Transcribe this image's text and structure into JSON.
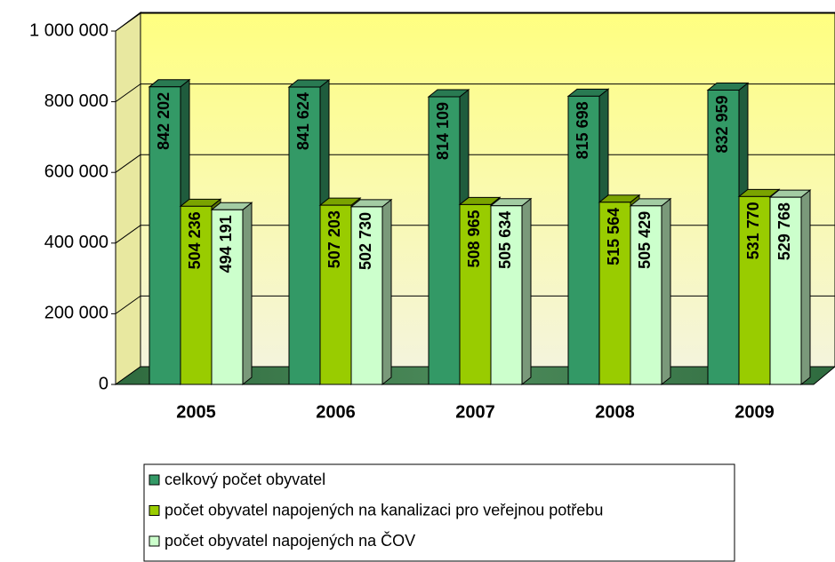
{
  "chart_data": {
    "type": "bar",
    "categories": [
      "2005",
      "2006",
      "2007",
      "2008",
      "2009"
    ],
    "series": [
      {
        "name": "celkový počet obyvatel",
        "color": "#339966",
        "values": [
          842202,
          841624,
          814109,
          815698,
          832959
        ],
        "value_labels": [
          "842 202",
          "841 624",
          "814 109",
          "815 698",
          "832 959"
        ]
      },
      {
        "name": "počet obyvatel napojených na kanalizaci pro veřejnou potřebu",
        "color": "#99cc00",
        "values": [
          504236,
          507203,
          508965,
          515564,
          531770
        ],
        "value_labels": [
          "504 236",
          "507 203",
          "508 965",
          "515 564",
          "531 770"
        ]
      },
      {
        "name": "počet obyvatel napojených na ČOV",
        "color": "#ccffcc",
        "values": [
          494191,
          502730,
          505634,
          505429,
          529768
        ],
        "value_labels": [
          "494 191",
          "502 730",
          "505 634",
          "505 429",
          "529 768"
        ]
      }
    ],
    "ylim": [
      0,
      1000000
    ],
    "yticks": [
      0,
      {
        "value": 200000,
        "label": "200 000"
      },
      {
        "value": 400000,
        "label": "400 000"
      },
      {
        "value": 600000,
        "label": "600 000"
      },
      {
        "value": 800000,
        "label": "800 000"
      },
      {
        "value": 1000000,
        "label": "1 000 000"
      }
    ],
    "grid": true
  }
}
